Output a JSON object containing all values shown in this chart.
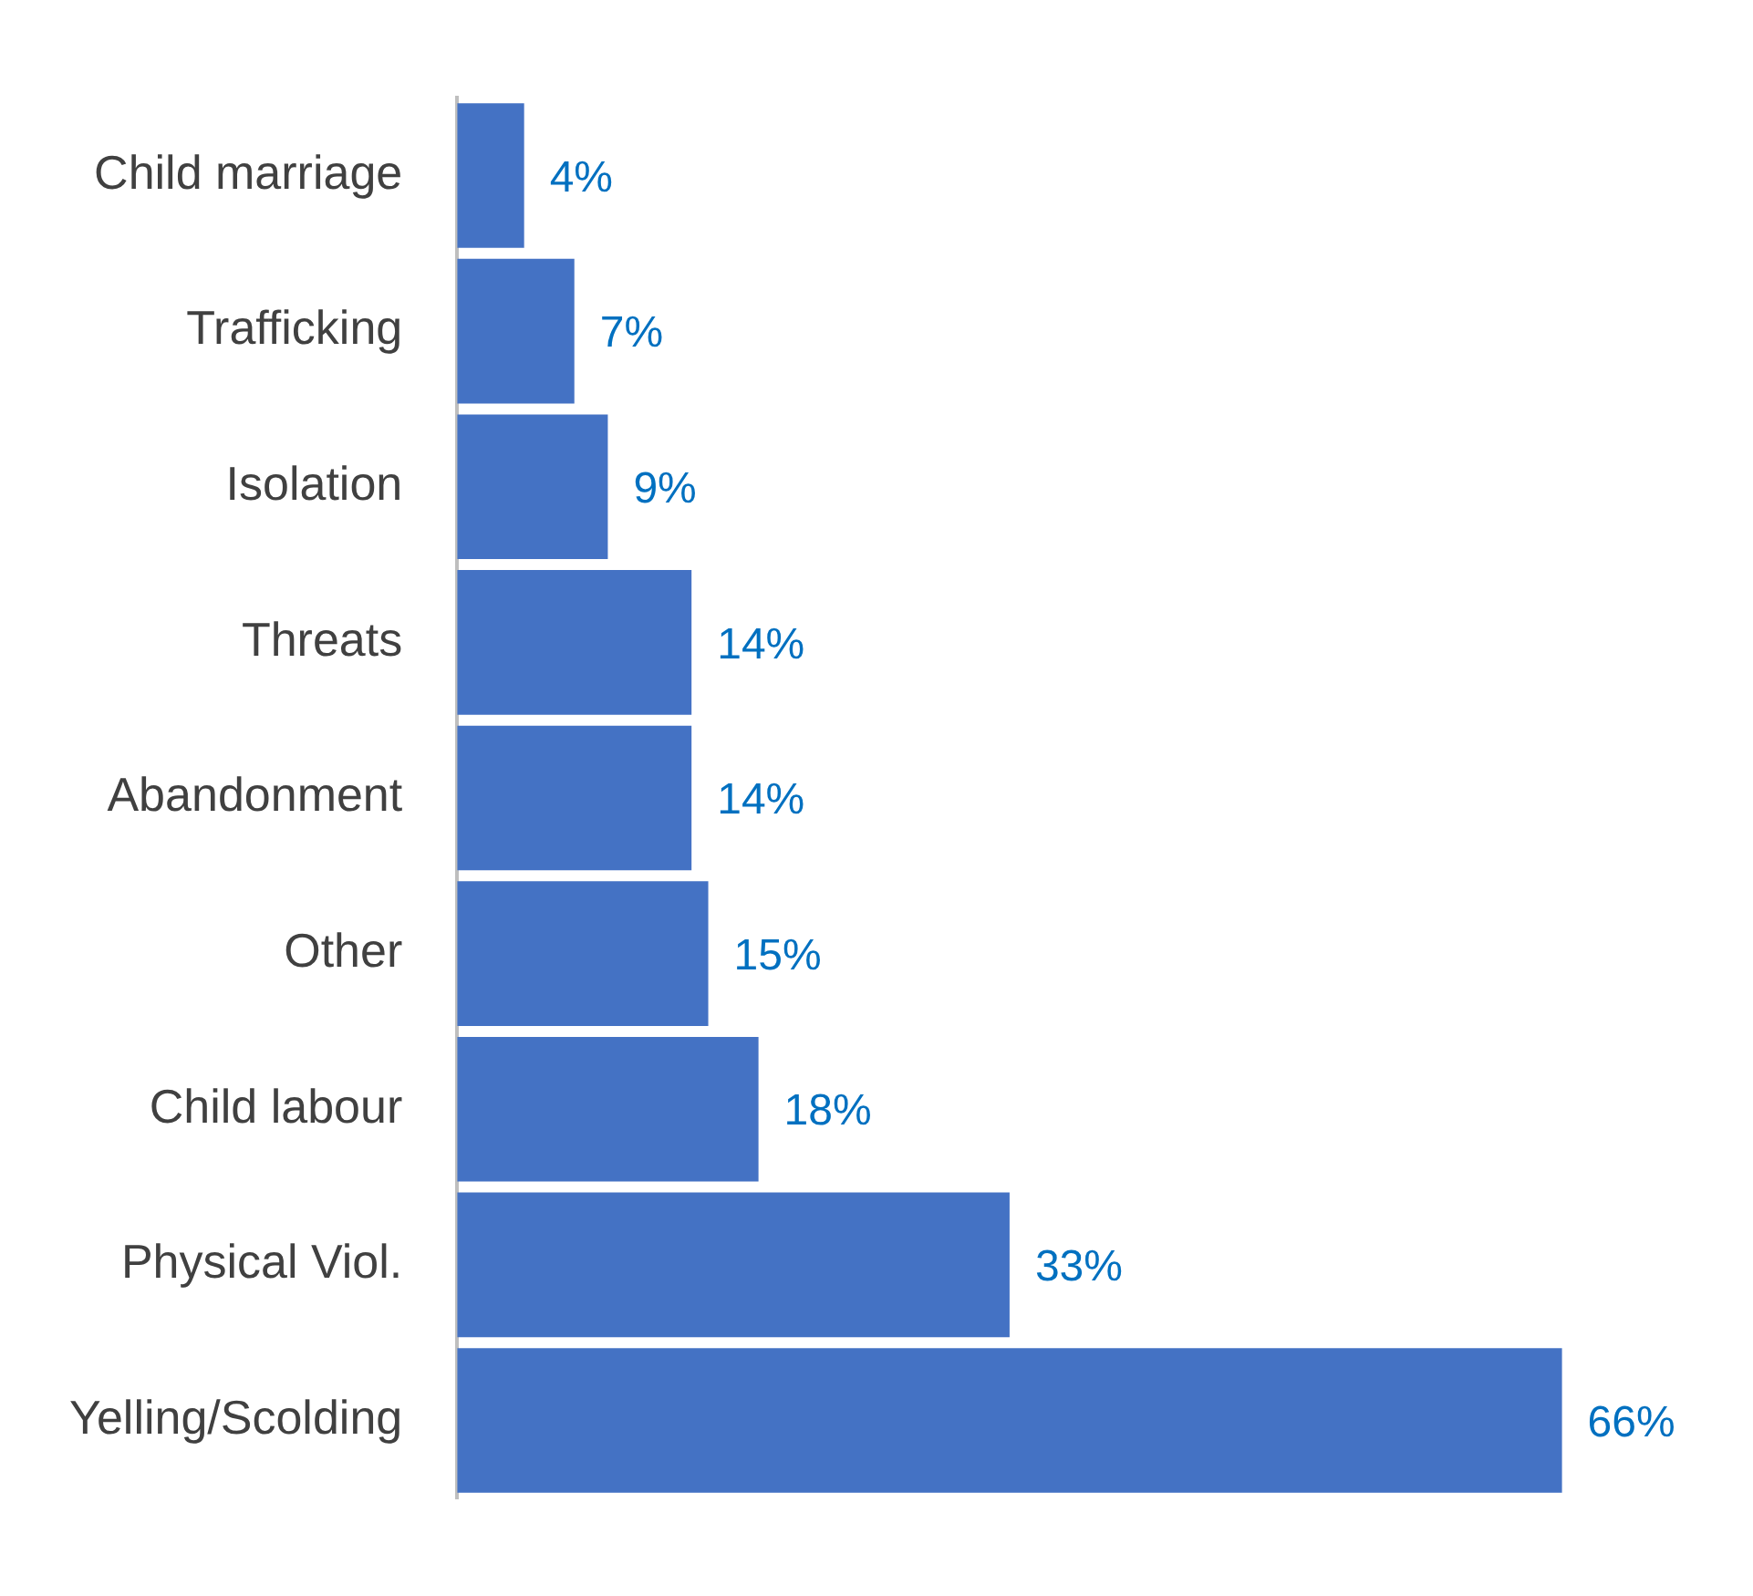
{
  "chart_data": {
    "type": "bar",
    "orientation": "horizontal",
    "categories": [
      "Child marriage",
      "Trafficking",
      "Isolation",
      "Threats",
      "Abandonment",
      "Other",
      "Child labour",
      "Physical Viol.",
      "Yelling/Scolding"
    ],
    "values": [
      4,
      7,
      9,
      14,
      14,
      15,
      18,
      33,
      66
    ],
    "value_labels": [
      "4%",
      "7%",
      "9%",
      "14%",
      "14%",
      "15%",
      "18%",
      "33%",
      "66%"
    ],
    "color": "#4472c4"
  }
}
